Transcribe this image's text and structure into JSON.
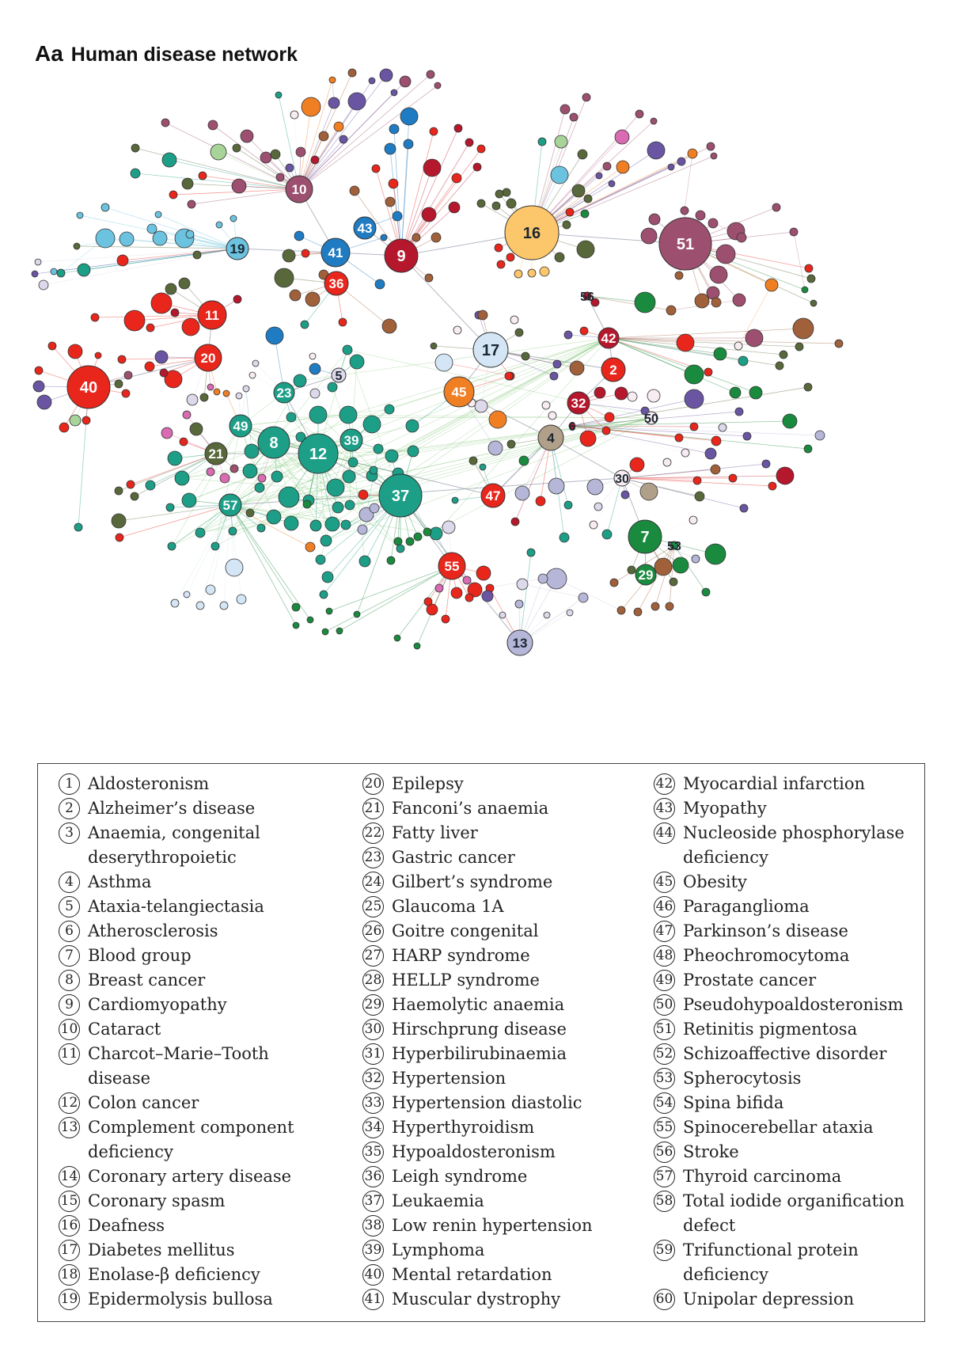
{
  "header": {
    "panel": "Aa",
    "title": "Human disease network"
  },
  "legend": {
    "columns": [
      [
        {
          "num": "1",
          "label": "Aldosteronism"
        },
        {
          "num": "2",
          "label": "Alzheimer’s disease"
        },
        {
          "num": "3",
          "label": "Anaemia, congenital\n  deserythropoietic"
        },
        {
          "num": "4",
          "label": "Asthma"
        },
        {
          "num": "5",
          "label": "Ataxia-telangiectasia"
        },
        {
          "num": "6",
          "label": "Atherosclerosis"
        },
        {
          "num": "7",
          "label": "Blood group"
        },
        {
          "num": "8",
          "label": "Breast cancer"
        },
        {
          "num": "9",
          "label": "Cardiomyopathy"
        },
        {
          "num": "10",
          "label": "Cataract"
        },
        {
          "num": "11",
          "label": "Charcot–Marie–Tooth\n  disease"
        },
        {
          "num": "12",
          "label": "Colon cancer"
        },
        {
          "num": "13",
          "label": "Complement component\n  deficiency"
        },
        {
          "num": "14",
          "label": "Coronary artery disease"
        },
        {
          "num": "15",
          "label": "Coronary spasm"
        },
        {
          "num": "16",
          "label": "Deafness"
        },
        {
          "num": "17",
          "label": "Diabetes mellitus"
        },
        {
          "num": "18",
          "label": "Enolase-β deficiency"
        },
        {
          "num": "19",
          "label": "Epidermolysis bullosa"
        }
      ],
      [
        {
          "num": "20",
          "label": "Epilepsy"
        },
        {
          "num": "21",
          "label": "Fanconi’s anaemia"
        },
        {
          "num": "22",
          "label": "Fatty liver"
        },
        {
          "num": "23",
          "label": "Gastric cancer"
        },
        {
          "num": "24",
          "label": "Gilbert’s syndrome"
        },
        {
          "num": "25",
          "label": "Glaucoma 1A"
        },
        {
          "num": "26",
          "label": "Goitre congenital"
        },
        {
          "num": "27",
          "label": "HARP syndrome"
        },
        {
          "num": "28",
          "label": "HELLP syndrome"
        },
        {
          "num": "29",
          "label": "Haemolytic anaemia"
        },
        {
          "num": "30",
          "label": "Hirschprung disease"
        },
        {
          "num": "31",
          "label": "Hyperbilirubinaemia"
        },
        {
          "num": "32",
          "label": "Hypertension"
        },
        {
          "num": "33",
          "label": "Hypertension diastolic"
        },
        {
          "num": "34",
          "label": "Hyperthyroidism"
        },
        {
          "num": "35",
          "label": "Hypoaldosteronism"
        },
        {
          "num": "36",
          "label": "Leigh syndrome"
        },
        {
          "num": "37",
          "label": "Leukaemia"
        },
        {
          "num": "38",
          "label": "Low renin hypertension"
        },
        {
          "num": "39",
          "label": "Lymphoma"
        },
        {
          "num": "40",
          "label": "Mental retardation"
        },
        {
          "num": "41",
          "label": "Muscular dystrophy"
        }
      ],
      [
        {
          "num": "42",
          "label": "Myocardial infarction"
        },
        {
          "num": "43",
          "label": "Myopathy"
        },
        {
          "num": "44",
          "label": "Nucleoside phosphorylase\n  deficiency"
        },
        {
          "num": "45",
          "label": "Obesity"
        },
        {
          "num": "46",
          "label": "Paraganglioma"
        },
        {
          "num": "47",
          "label": "Parkinson’s disease"
        },
        {
          "num": "48",
          "label": "Pheochromocytoma"
        },
        {
          "num": "49",
          "label": "Prostate cancer"
        },
        {
          "num": "50",
          "label": "Pseudohypoaldosteronism"
        },
        {
          "num": "51",
          "label": "Retinitis pigmentosa"
        },
        {
          "num": "52",
          "label": "Schizoaffective disorder"
        },
        {
          "num": "53",
          "label": "Spherocytosis"
        },
        {
          "num": "54",
          "label": "Spina bifida"
        },
        {
          "num": "55",
          "label": "Spinocerebellar ataxia"
        },
        {
          "num": "56",
          "label": "Stroke"
        },
        {
          "num": "57",
          "label": "Thyroid carcinoma"
        },
        {
          "num": "58",
          "label": "Total iodide organification\n  defect"
        },
        {
          "num": "59",
          "label": "Trifunctional protein\n  deficiency"
        },
        {
          "num": "60",
          "label": "Unipolar depression"
        }
      ]
    ]
  },
  "network": {
    "labeled_nodes": [
      {
        "label": "10",
        "color": "#9c4f6e"
      },
      {
        "label": "43",
        "color": "#1f7bc2"
      },
      {
        "label": "41",
        "color": "#1f7bc2"
      },
      {
        "label": "9",
        "color": "#b5172c"
      },
      {
        "label": "36",
        "color": "#e8261b"
      },
      {
        "label": "19",
        "color": "#6cc3e0"
      },
      {
        "label": "16",
        "color": "#fcc66b"
      },
      {
        "label": "51",
        "color": "#9c4f6e"
      },
      {
        "label": "11",
        "color": "#e8261b"
      },
      {
        "label": "20",
        "color": "#e8261b"
      },
      {
        "label": "40",
        "color": "#e8261b"
      },
      {
        "label": "56",
        "color": "#b5172c"
      },
      {
        "label": "42",
        "color": "#b5172c"
      },
      {
        "label": "17",
        "color": "#d4e6f5"
      },
      {
        "label": "2",
        "color": "#e8261b"
      },
      {
        "label": "5",
        "color": "#ddd8ea"
      },
      {
        "label": "45",
        "color": "#f07f24"
      },
      {
        "label": "32",
        "color": "#b5172c"
      },
      {
        "label": "6",
        "color": "#b5172c"
      },
      {
        "label": "50",
        "color": "#f7ecf2"
      },
      {
        "label": "23",
        "color": "#1d9e87"
      },
      {
        "label": "49",
        "color": "#1d9e87"
      },
      {
        "label": "8",
        "color": "#1d9e87"
      },
      {
        "label": "39",
        "color": "#1d9e87"
      },
      {
        "label": "21",
        "color": "#58683a"
      },
      {
        "label": "12",
        "color": "#1d9e87"
      },
      {
        "label": "4",
        "color": "#b0a08a"
      },
      {
        "label": "30",
        "color": "#f7ecf2"
      },
      {
        "label": "37",
        "color": "#1d9e87"
      },
      {
        "label": "47",
        "color": "#e8261b"
      },
      {
        "label": "57",
        "color": "#1d9e87"
      },
      {
        "label": "7",
        "color": "#1a8a3e"
      },
      {
        "label": "53",
        "color": "#1a8a3e"
      },
      {
        "label": "29",
        "color": "#1a8a3e"
      },
      {
        "label": "55",
        "color": "#e8261b"
      },
      {
        "label": "13",
        "color": "#b6b6d8"
      }
    ]
  }
}
